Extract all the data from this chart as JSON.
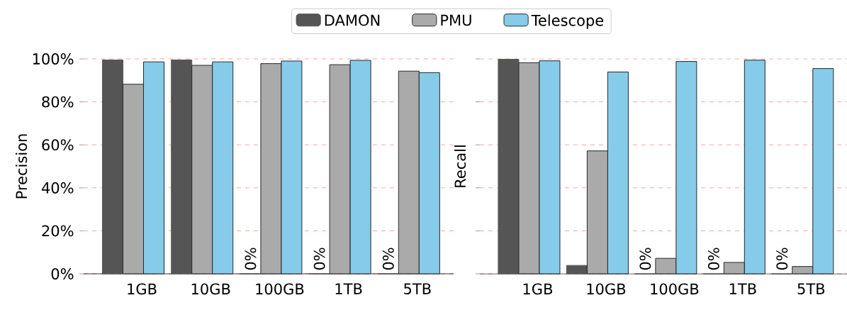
{
  "chart_data": [
    {
      "type": "bar",
      "ylabel": "Precision",
      "categories": [
        "1GB",
        "10GB",
        "100GB",
        "1TB",
        "5TB"
      ],
      "series": [
        {
          "name": "DAMON",
          "color": "#555555",
          "values": [
            99.5,
            99.5,
            0,
            0,
            0
          ],
          "value_labels": [
            null,
            null,
            "0%",
            "0%",
            "0%"
          ]
        },
        {
          "name": "PMU",
          "color": "#aaaaaa",
          "values": [
            88.2,
            97.0,
            97.8,
            97.3,
            94.3
          ]
        },
        {
          "name": "Telescope",
          "color": "#87cbea",
          "values": [
            98.6,
            98.6,
            99.0,
            99.3,
            93.6
          ]
        }
      ],
      "ylim": [
        0,
        100
      ],
      "yticks": [
        {
          "value": 0,
          "label": "0%"
        },
        {
          "value": 20,
          "label": "20%"
        },
        {
          "value": 40,
          "label": "40%"
        },
        {
          "value": 60,
          "label": "60%"
        },
        {
          "value": 80,
          "label": "80%"
        },
        {
          "value": 100,
          "label": "100%"
        }
      ],
      "grid": "y",
      "legend": "top"
    },
    {
      "type": "bar",
      "ylabel": "Recall",
      "categories": [
        "1GB",
        "10GB",
        "100GB",
        "1TB",
        "5TB"
      ],
      "series": [
        {
          "color": "#555555",
          "values": [
            99.8,
            3.9,
            0,
            0,
            0
          ],
          "value_labels": [
            null,
            null,
            "0%",
            "0%",
            "0%"
          ]
        },
        {
          "color": "#aaaaaa",
          "values": [
            98.2,
            57.2,
            7.2,
            5.3,
            3.4
          ]
        },
        {
          "color": "#87cbea",
          "values": [
            99.1,
            93.9,
            98.8,
            99.4,
            95.5
          ]
        }
      ],
      "ylim": [
        0,
        100
      ],
      "yticks": [
        {
          "value": 0,
          "label": null
        },
        {
          "value": 20,
          "label": null
        },
        {
          "value": 40,
          "label": null
        },
        {
          "value": 60,
          "label": null
        },
        {
          "value": 80,
          "label": null
        },
        {
          "value": 100,
          "label": null
        }
      ],
      "grid": "y",
      "tick_labels": "x"
    }
  ]
}
